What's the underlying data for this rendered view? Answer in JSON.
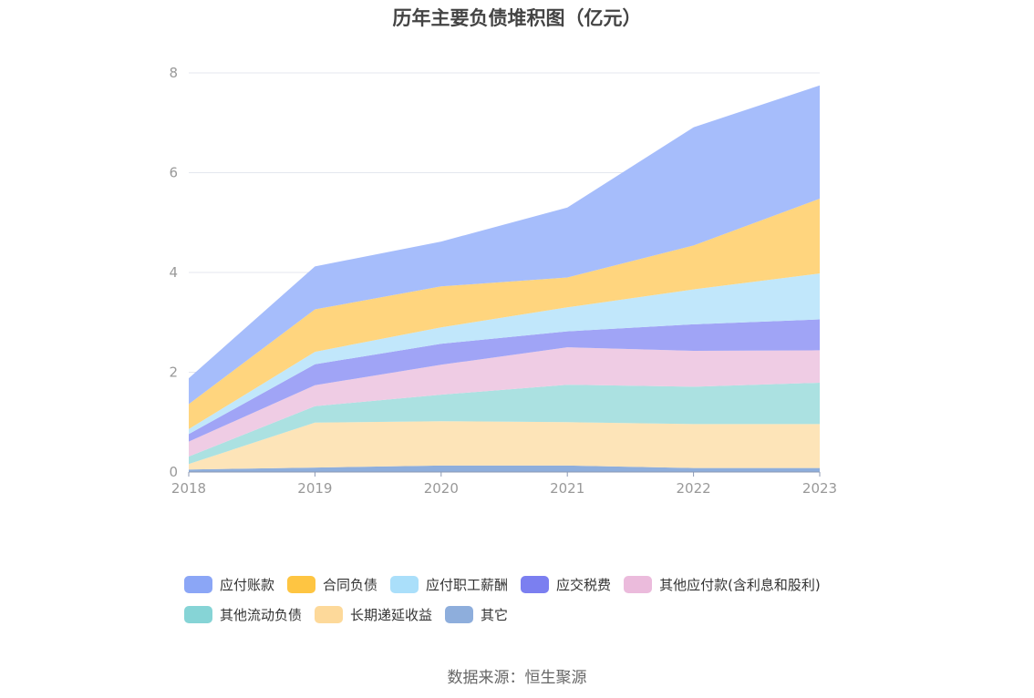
{
  "chart_data": {
    "type": "area",
    "stacked": true,
    "title": "历年主要负债堆积图（亿元）",
    "x": [
      "2018",
      "2019",
      "2020",
      "2021",
      "2022",
      "2023"
    ],
    "ylim": [
      0,
      8
    ],
    "yticks": [
      "0",
      "2",
      "4",
      "6",
      "8"
    ],
    "grid": true,
    "legend_position": "bottom",
    "series": [
      {
        "name": "其它",
        "color": "#8eaedc",
        "values": [
          0.05,
          0.09,
          0.13,
          0.13,
          0.08,
          0.08
        ]
      },
      {
        "name": "长期递延收益",
        "color": "#fde4b8",
        "values": [
          0.11,
          0.9,
          0.89,
          0.87,
          0.88,
          0.88
        ]
      },
      {
        "name": "其他流动负债",
        "color": "#abe1e1",
        "values": [
          0.15,
          0.33,
          0.53,
          0.75,
          0.75,
          0.83
        ]
      },
      {
        "name": "其他应付款(含利息和股利)",
        "color": "#efcce4",
        "values": [
          0.3,
          0.42,
          0.6,
          0.75,
          0.72,
          0.65
        ]
      },
      {
        "name": "应交税费",
        "color": "#a0a4f6",
        "values": [
          0.15,
          0.42,
          0.42,
          0.32,
          0.53,
          0.62
        ]
      },
      {
        "name": "应付职工薪酬",
        "color": "#c1e7fb",
        "values": [
          0.1,
          0.25,
          0.33,
          0.48,
          0.7,
          0.92
        ]
      },
      {
        "name": "合同负债",
        "color": "#ffd57e",
        "values": [
          0.5,
          0.85,
          0.82,
          0.6,
          0.88,
          1.5
        ]
      },
      {
        "name": "应付账款",
        "color": "#a6bdfb",
        "values": [
          0.52,
          0.86,
          0.9,
          1.4,
          2.37,
          2.27
        ]
      }
    ],
    "legend": [
      {
        "name": "应付账款",
        "color": "#8ba6f6"
      },
      {
        "name": "合同负债",
        "color": "#fec542"
      },
      {
        "name": "应付职工薪酬",
        "color": "#aadffa"
      },
      {
        "name": "应交税费",
        "color": "#7b7ff0"
      },
      {
        "name": "其他应付款(含利息和股利)",
        "color": "#ebbbdc"
      },
      {
        "name": "其他流动负债",
        "color": "#86d4d6"
      },
      {
        "name": "长期递延收益",
        "color": "#fdd99a"
      },
      {
        "name": "其它",
        "color": "#8eaedc"
      }
    ]
  },
  "source_note": "数据来源：恒生聚源"
}
